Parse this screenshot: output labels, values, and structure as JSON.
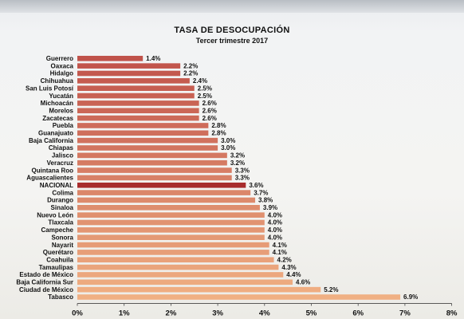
{
  "chart_data": {
    "type": "bar",
    "orientation": "horizontal",
    "title": "TASA DE DESOCUPACIÓN",
    "subtitle": "Tercer trimestre 2017",
    "categories": [
      "Guerrero",
      "Oaxaca",
      "Hidalgo",
      "Chihuahua",
      "San Luis Potosí",
      "Yucatán",
      "Michoacán",
      "Morelos",
      "Zacatecas",
      "Puebla",
      "Guanajuato",
      "Baja California",
      "Chiapas",
      "Jalisco",
      "Veracruz",
      "Quintana Roo",
      "Aguascalientes",
      "NACIONAL",
      "Colima",
      "Durango",
      "Sinaloa",
      "Nuevo León",
      "Tlaxcala",
      "Campeche",
      "Sonora",
      "Nayarit",
      "Querétaro",
      "Coahuila",
      "Tamaulipas",
      "Estado de México",
      "Baja California Sur",
      "Ciudad de México",
      "Tabasco"
    ],
    "values": [
      1.4,
      2.2,
      2.2,
      2.4,
      2.5,
      2.5,
      2.6,
      2.6,
      2.6,
      2.8,
      2.8,
      3.0,
      3.0,
      3.2,
      3.2,
      3.3,
      3.3,
      3.6,
      3.7,
      3.8,
      3.9,
      4.0,
      4.0,
      4.0,
      4.0,
      4.1,
      4.1,
      4.2,
      4.3,
      4.4,
      4.6,
      5.2,
      6.9
    ],
    "value_labels": [
      "1.4%",
      "2.2%",
      "2.2%",
      "2.4%",
      "2.5%",
      "2.5%",
      "2.6%",
      "2.6%",
      "2.6%",
      "2.8%",
      "2.8%",
      "3.0%",
      "3.0%",
      "3.2%",
      "3.2%",
      "3.3%",
      "3.3%",
      "3.6%",
      "3.7%",
      "3.8%",
      "3.9%",
      "4.0%",
      "4.0%",
      "4.0%",
      "4.0%",
      "4.1%",
      "4.1%",
      "4.2%",
      "4.3%",
      "4.4%",
      "4.6%",
      "5.2%",
      "6.9%"
    ],
    "highlight": "NACIONAL",
    "xlim": [
      0,
      8
    ],
    "x_ticks": [
      "0%",
      "1%",
      "2%",
      "3%",
      "4%",
      "5%",
      "6%",
      "7%",
      "8%"
    ],
    "colors": {
      "bar_start": "#c0524a",
      "bar_end": "#f0b083",
      "highlight": "#a82c2c"
    },
    "grid": false,
    "legend": "none"
  }
}
